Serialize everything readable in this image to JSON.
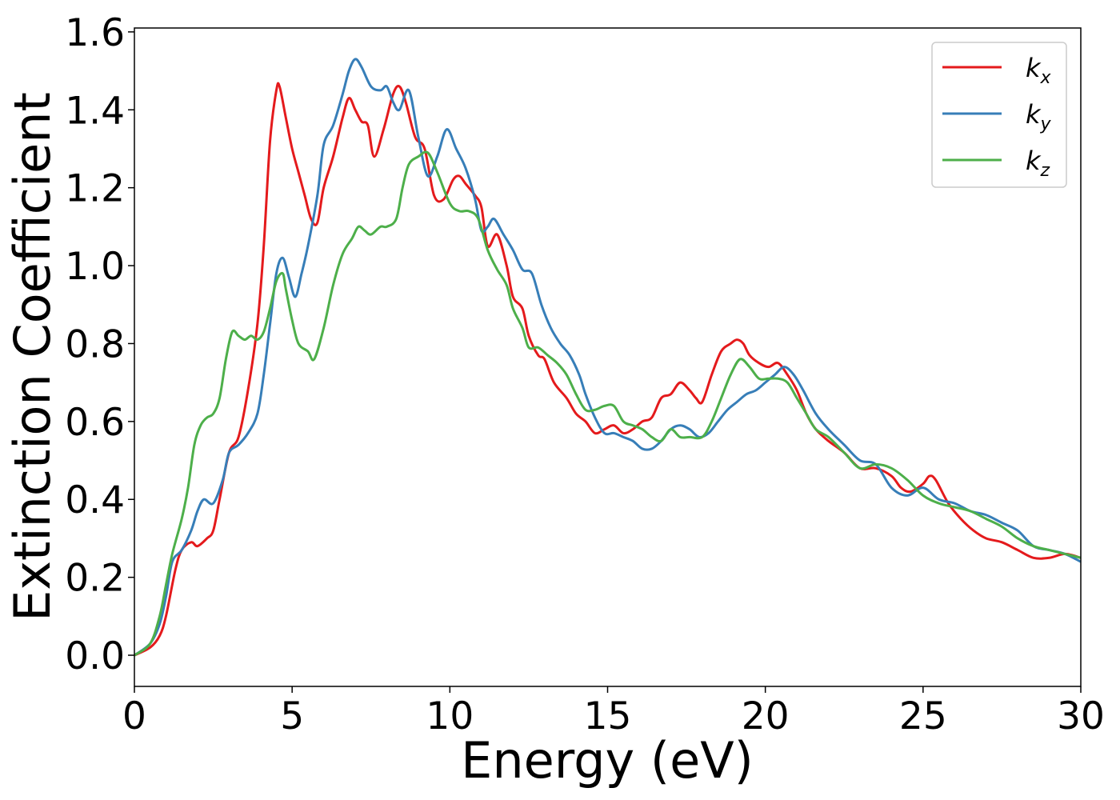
{
  "chart_data": {
    "type": "line",
    "xlabel": "Energy (eV)",
    "ylabel": "Extinction Coefficient",
    "xlim": [
      0,
      30
    ],
    "ylim": [
      -0.08,
      1.61
    ],
    "x_ticks": [
      "0",
      "5",
      "10",
      "15",
      "20",
      "25",
      "30"
    ],
    "y_ticks": [
      "0.0",
      "0.2",
      "0.4",
      "0.6",
      "0.8",
      "1.0",
      "1.2",
      "1.4",
      "1.6"
    ],
    "grid": false,
    "legend_position": "top-right",
    "series": [
      {
        "name": "k_x",
        "label_base": "k",
        "label_sub": "x",
        "color": "#e41a1c",
        "x": [
          0,
          0.5,
          0.8,
          1.0,
          1.3,
          1.5,
          1.8,
          2.0,
          2.3,
          2.5,
          2.7,
          3.0,
          3.3,
          3.6,
          3.9,
          4.1,
          4.3,
          4.5,
          4.6,
          4.8,
          5.0,
          5.2,
          5.4,
          5.6,
          5.8,
          6.0,
          6.3,
          6.6,
          6.8,
          7.0,
          7.2,
          7.4,
          7.6,
          7.9,
          8.2,
          8.4,
          8.6,
          8.9,
          9.2,
          9.5,
          9.8,
          10.1,
          10.3,
          10.5,
          10.8,
          11.0,
          11.2,
          11.5,
          11.8,
          12.0,
          12.3,
          12.5,
          12.8,
          13.0,
          13.3,
          13.7,
          14.0,
          14.3,
          14.6,
          14.9,
          15.2,
          15.5,
          15.8,
          16.1,
          16.4,
          16.7,
          17.0,
          17.3,
          17.6,
          17.8,
          18.0,
          18.3,
          18.6,
          18.9,
          19.1,
          19.3,
          19.5,
          19.8,
          20.1,
          20.4,
          20.7,
          21.0,
          21.3,
          21.6,
          22.0,
          22.5,
          23.0,
          23.5,
          24.0,
          24.3,
          24.6,
          25.0,
          25.2,
          25.4,
          25.8,
          26.2,
          26.6,
          27.0,
          27.5,
          28.0,
          28.5,
          29.0,
          29.5,
          30.0
        ],
        "y": [
          0.0,
          0.02,
          0.05,
          0.1,
          0.22,
          0.27,
          0.29,
          0.28,
          0.3,
          0.32,
          0.4,
          0.52,
          0.56,
          0.68,
          0.85,
          1.05,
          1.32,
          1.45,
          1.46,
          1.38,
          1.3,
          1.24,
          1.18,
          1.12,
          1.11,
          1.2,
          1.28,
          1.38,
          1.43,
          1.4,
          1.37,
          1.36,
          1.28,
          1.35,
          1.44,
          1.46,
          1.42,
          1.33,
          1.3,
          1.18,
          1.17,
          1.22,
          1.23,
          1.21,
          1.18,
          1.15,
          1.05,
          1.08,
          1.0,
          0.92,
          0.89,
          0.82,
          0.77,
          0.76,
          0.7,
          0.66,
          0.62,
          0.6,
          0.57,
          0.58,
          0.59,
          0.57,
          0.58,
          0.6,
          0.61,
          0.66,
          0.67,
          0.7,
          0.68,
          0.66,
          0.65,
          0.72,
          0.78,
          0.8,
          0.81,
          0.8,
          0.77,
          0.75,
          0.74,
          0.75,
          0.72,
          0.68,
          0.62,
          0.58,
          0.55,
          0.52,
          0.48,
          0.48,
          0.46,
          0.43,
          0.42,
          0.44,
          0.46,
          0.45,
          0.39,
          0.35,
          0.32,
          0.3,
          0.29,
          0.27,
          0.25,
          0.25,
          0.26,
          0.25
        ]
      },
      {
        "name": "k_y",
        "label_base": "k",
        "label_sub": "y",
        "color": "#377eb8",
        "x": [
          0,
          0.5,
          0.8,
          1.0,
          1.2,
          1.5,
          1.8,
          2.0,
          2.2,
          2.5,
          2.8,
          3.0,
          3.3,
          3.6,
          3.9,
          4.1,
          4.3,
          4.5,
          4.7,
          4.9,
          5.1,
          5.3,
          5.5,
          5.8,
          6.0,
          6.3,
          6.6,
          6.8,
          7.0,
          7.2,
          7.5,
          7.8,
          8.0,
          8.2,
          8.4,
          8.7,
          9.0,
          9.3,
          9.6,
          9.9,
          10.2,
          10.5,
          10.8,
          11.0,
          11.2,
          11.4,
          11.7,
          12.0,
          12.3,
          12.6,
          12.9,
          13.2,
          13.5,
          13.8,
          14.1,
          14.3,
          14.6,
          14.9,
          15.2,
          15.5,
          15.8,
          16.1,
          16.4,
          16.7,
          17.0,
          17.3,
          17.6,
          17.9,
          18.2,
          18.5,
          18.8,
          19.1,
          19.4,
          19.7,
          20.0,
          20.3,
          20.6,
          20.9,
          21.2,
          21.6,
          22.0,
          22.5,
          23.0,
          23.5,
          24.0,
          24.5,
          25.0,
          25.5,
          26.0,
          26.5,
          27.0,
          27.5,
          28.0,
          28.5,
          29.0,
          29.5,
          30.0
        ],
        "y": [
          0.0,
          0.03,
          0.08,
          0.15,
          0.24,
          0.27,
          0.32,
          0.37,
          0.4,
          0.39,
          0.45,
          0.52,
          0.54,
          0.57,
          0.62,
          0.72,
          0.85,
          0.98,
          1.02,
          0.97,
          0.92,
          0.98,
          1.05,
          1.18,
          1.31,
          1.36,
          1.44,
          1.5,
          1.53,
          1.51,
          1.46,
          1.45,
          1.46,
          1.42,
          1.4,
          1.45,
          1.33,
          1.23,
          1.28,
          1.35,
          1.3,
          1.25,
          1.17,
          1.09,
          1.1,
          1.12,
          1.08,
          1.04,
          0.99,
          0.98,
          0.9,
          0.84,
          0.8,
          0.77,
          0.72,
          0.67,
          0.61,
          0.57,
          0.57,
          0.56,
          0.55,
          0.53,
          0.53,
          0.55,
          0.58,
          0.59,
          0.58,
          0.56,
          0.57,
          0.6,
          0.63,
          0.65,
          0.67,
          0.68,
          0.7,
          0.72,
          0.74,
          0.72,
          0.68,
          0.62,
          0.58,
          0.54,
          0.5,
          0.49,
          0.43,
          0.41,
          0.43,
          0.4,
          0.39,
          0.37,
          0.36,
          0.34,
          0.32,
          0.28,
          0.27,
          0.26,
          0.24
        ]
      },
      {
        "name": "k_z",
        "label_base": "k",
        "label_sub": "z",
        "color": "#4daf4a",
        "x": [
          0,
          0.5,
          0.8,
          1.0,
          1.2,
          1.5,
          1.7,
          1.9,
          2.1,
          2.3,
          2.5,
          2.7,
          2.9,
          3.1,
          3.3,
          3.5,
          3.7,
          3.9,
          4.1,
          4.3,
          4.5,
          4.7,
          4.8,
          5.0,
          5.2,
          5.5,
          5.7,
          6.0,
          6.3,
          6.6,
          6.9,
          7.1,
          7.3,
          7.5,
          7.8,
          8.0,
          8.3,
          8.5,
          8.7,
          9.0,
          9.3,
          9.6,
          10.0,
          10.3,
          10.6,
          10.9,
          11.2,
          11.5,
          11.8,
          12.0,
          12.3,
          12.5,
          12.8,
          13.1,
          13.4,
          13.7,
          14.0,
          14.3,
          14.6,
          14.9,
          15.2,
          15.5,
          15.8,
          16.1,
          16.4,
          16.7,
          17.0,
          17.3,
          17.6,
          18.0,
          18.3,
          18.6,
          18.9,
          19.2,
          19.5,
          19.8,
          20.1,
          20.4,
          20.7,
          21.0,
          21.3,
          21.6,
          22.0,
          22.5,
          23.0,
          23.5,
          24.0,
          24.5,
          25.0,
          25.5,
          26.0,
          26.5,
          27.0,
          27.5,
          28.0,
          28.5,
          29.0,
          29.5,
          30.0
        ],
        "y": [
          0.0,
          0.03,
          0.1,
          0.18,
          0.26,
          0.35,
          0.43,
          0.54,
          0.59,
          0.61,
          0.62,
          0.66,
          0.76,
          0.83,
          0.82,
          0.81,
          0.82,
          0.81,
          0.83,
          0.89,
          0.96,
          0.98,
          0.94,
          0.86,
          0.8,
          0.78,
          0.76,
          0.84,
          0.95,
          1.03,
          1.07,
          1.1,
          1.09,
          1.08,
          1.1,
          1.1,
          1.12,
          1.2,
          1.26,
          1.28,
          1.29,
          1.24,
          1.16,
          1.14,
          1.14,
          1.12,
          1.04,
          0.99,
          0.95,
          0.89,
          0.84,
          0.79,
          0.79,
          0.77,
          0.75,
          0.72,
          0.67,
          0.63,
          0.63,
          0.64,
          0.64,
          0.6,
          0.59,
          0.58,
          0.56,
          0.55,
          0.58,
          0.56,
          0.56,
          0.56,
          0.6,
          0.66,
          0.72,
          0.76,
          0.74,
          0.71,
          0.71,
          0.71,
          0.7,
          0.66,
          0.62,
          0.58,
          0.56,
          0.52,
          0.48,
          0.49,
          0.48,
          0.45,
          0.41,
          0.39,
          0.38,
          0.37,
          0.35,
          0.33,
          0.3,
          0.28,
          0.27,
          0.26,
          0.25
        ]
      }
    ]
  }
}
